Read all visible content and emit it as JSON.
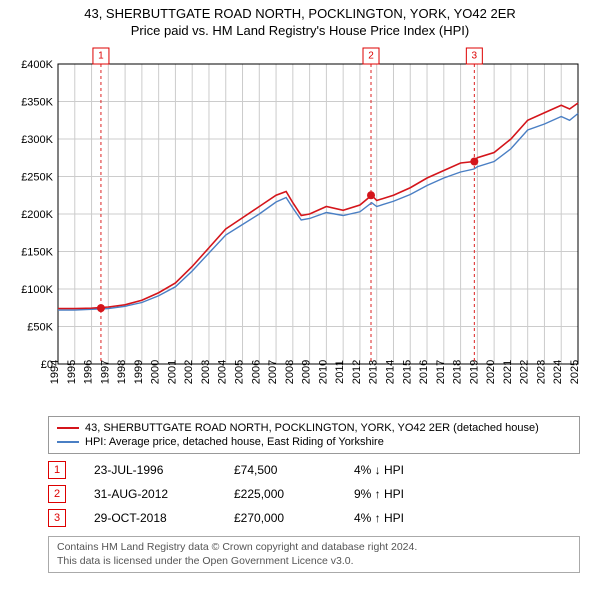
{
  "title": {
    "line1": "43, SHERBUTTGATE ROAD NORTH, POCKLINGTON, YORK, YO42 2ER",
    "line2": "Price paid vs. HM Land Registry's House Price Index (HPI)"
  },
  "chart": {
    "type": "line",
    "background_color": "#ffffff",
    "grid_color": "#cccccc",
    "axis_color": "#000000",
    "ylim": [
      0,
      400000
    ],
    "ytick_step": 50000,
    "yticks": [
      "£0",
      "£50K",
      "£100K",
      "£150K",
      "£200K",
      "£250K",
      "£300K",
      "£350K",
      "£400K"
    ],
    "xlim": [
      1994,
      2025
    ],
    "xticks": [
      1994,
      1995,
      1996,
      1997,
      1998,
      1999,
      2000,
      2001,
      2002,
      2003,
      2004,
      2005,
      2006,
      2007,
      2008,
      2009,
      2010,
      2011,
      2012,
      2013,
      2014,
      2015,
      2016,
      2017,
      2018,
      2019,
      2020,
      2021,
      2022,
      2023,
      2024,
      2025
    ],
    "marker_lines_color": "#dd2222",
    "marker_line_dash": "3,3",
    "series": [
      {
        "name": "property",
        "color": "#d4151b",
        "width": 1.6,
        "values": [
          [
            1994,
            74000
          ],
          [
            1995,
            74000
          ],
          [
            1996,
            74500
          ],
          [
            1997,
            76000
          ],
          [
            1998,
            79000
          ],
          [
            1999,
            85000
          ],
          [
            2000,
            95000
          ],
          [
            2001,
            108000
          ],
          [
            2002,
            130000
          ],
          [
            2003,
            155000
          ],
          [
            2004,
            180000
          ],
          [
            2005,
            195000
          ],
          [
            2006,
            210000
          ],
          [
            2007,
            225000
          ],
          [
            2007.6,
            230000
          ],
          [
            2008,
            215000
          ],
          [
            2008.5,
            198000
          ],
          [
            2009,
            200000
          ],
          [
            2010,
            210000
          ],
          [
            2011,
            205000
          ],
          [
            2012,
            212000
          ],
          [
            2012.7,
            225000
          ],
          [
            2013,
            218000
          ],
          [
            2014,
            225000
          ],
          [
            2015,
            235000
          ],
          [
            2016,
            248000
          ],
          [
            2017,
            258000
          ],
          [
            2018,
            268000
          ],
          [
            2018.8,
            270000
          ],
          [
            2019,
            275000
          ],
          [
            2020,
            282000
          ],
          [
            2021,
            300000
          ],
          [
            2022,
            325000
          ],
          [
            2023,
            335000
          ],
          [
            2024,
            345000
          ],
          [
            2024.5,
            340000
          ],
          [
            2025,
            348000
          ]
        ]
      },
      {
        "name": "hpi",
        "color": "#4a7fc4",
        "width": 1.4,
        "values": [
          [
            1994,
            72000
          ],
          [
            1995,
            72000
          ],
          [
            1996,
            73000
          ],
          [
            1997,
            74000
          ],
          [
            1998,
            77000
          ],
          [
            1999,
            82000
          ],
          [
            2000,
            91000
          ],
          [
            2001,
            103000
          ],
          [
            2002,
            124000
          ],
          [
            2003,
            148000
          ],
          [
            2004,
            172000
          ],
          [
            2005,
            186000
          ],
          [
            2006,
            200000
          ],
          [
            2007,
            216000
          ],
          [
            2007.6,
            222000
          ],
          [
            2008,
            208000
          ],
          [
            2008.5,
            192000
          ],
          [
            2009,
            194000
          ],
          [
            2010,
            202000
          ],
          [
            2011,
            198000
          ],
          [
            2012,
            203000
          ],
          [
            2012.7,
            215000
          ],
          [
            2013,
            210000
          ],
          [
            2014,
            217000
          ],
          [
            2015,
            226000
          ],
          [
            2016,
            238000
          ],
          [
            2017,
            248000
          ],
          [
            2018,
            256000
          ],
          [
            2018.8,
            260000
          ],
          [
            2019,
            263000
          ],
          [
            2020,
            270000
          ],
          [
            2021,
            287000
          ],
          [
            2022,
            312000
          ],
          [
            2023,
            320000
          ],
          [
            2024,
            330000
          ],
          [
            2024.5,
            325000
          ],
          [
            2025,
            334000
          ]
        ]
      }
    ],
    "sale_points": [
      {
        "n": "1",
        "x": 1996.56,
        "y": 74500
      },
      {
        "n": "2",
        "x": 2012.66,
        "y": 225000
      },
      {
        "n": "3",
        "x": 2018.82,
        "y": 270000
      }
    ],
    "point_color": "#d4151b",
    "point_radius": 4
  },
  "legend": {
    "items": [
      {
        "color": "#d4151b",
        "label": "43, SHERBUTTGATE ROAD NORTH, POCKLINGTON, YORK, YO42 2ER (detached house)"
      },
      {
        "color": "#4a7fc4",
        "label": "HPI: Average price, detached house, East Riding of Yorkshire"
      }
    ]
  },
  "sales": [
    {
      "n": "1",
      "date": "23-JUL-1996",
      "price": "£74,500",
      "diff": "4% ↓ HPI"
    },
    {
      "n": "2",
      "date": "31-AUG-2012",
      "price": "£225,000",
      "diff": "9% ↑ HPI"
    },
    {
      "n": "3",
      "date": "29-OCT-2018",
      "price": "£270,000",
      "diff": "4% ↑ HPI"
    }
  ],
  "footer": {
    "line1": "Contains HM Land Registry data © Crown copyright and database right 2024.",
    "line2": "This data is licensed under the Open Government Licence v3.0."
  }
}
